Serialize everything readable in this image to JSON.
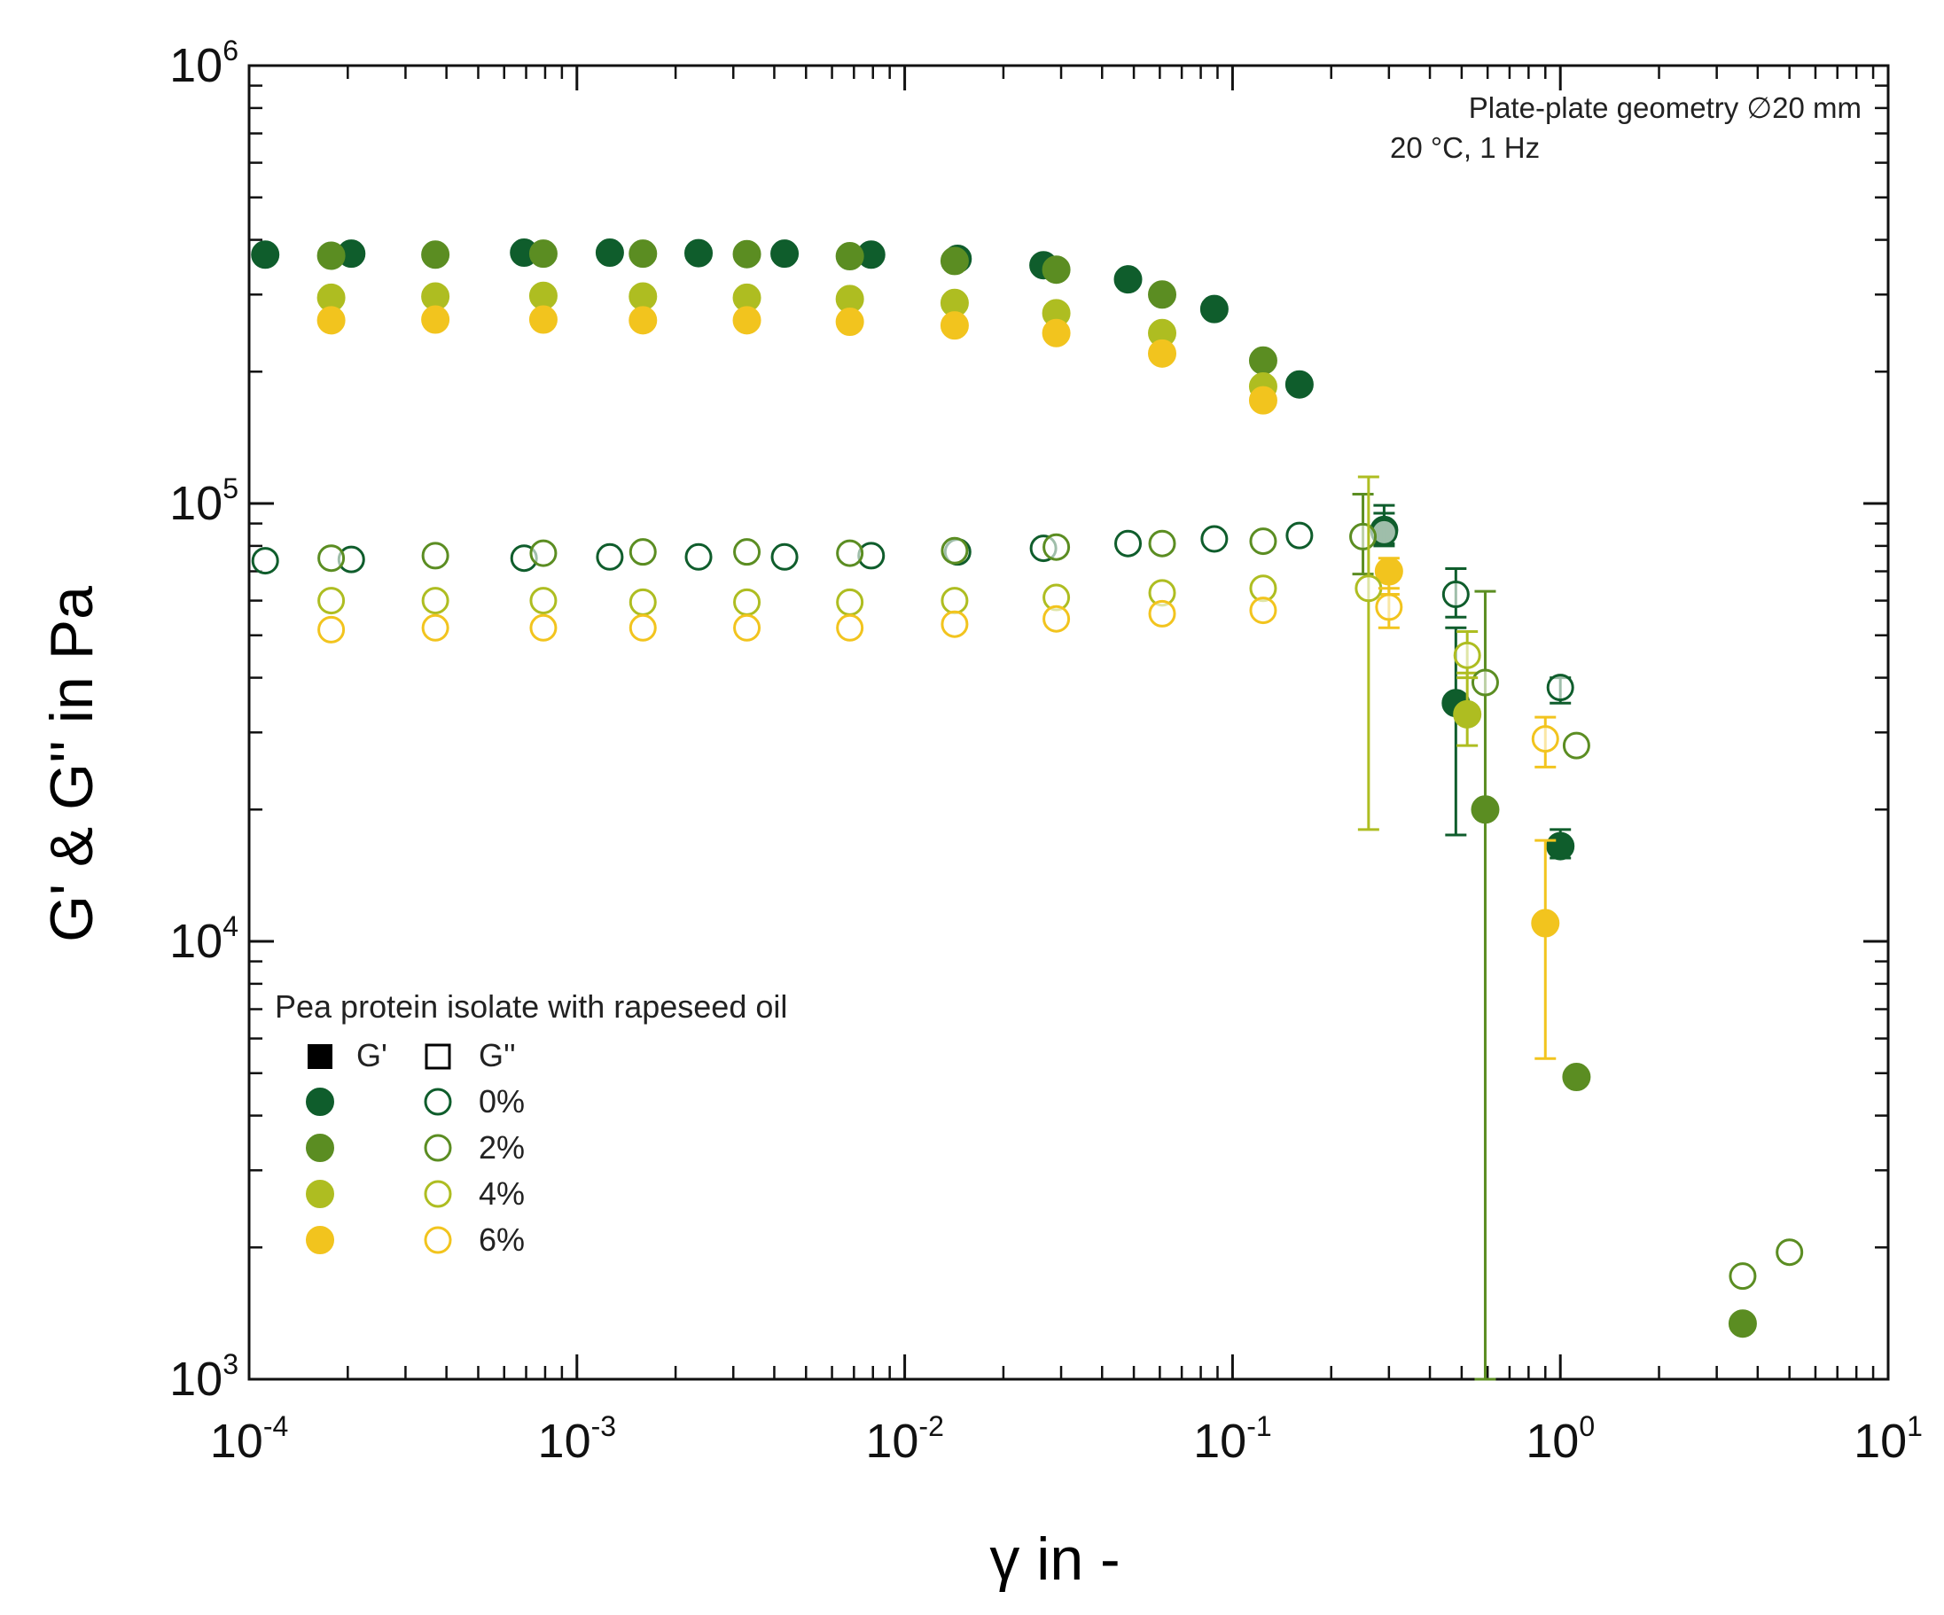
{
  "chart_data": {
    "type": "scatter",
    "title": "",
    "xlabel": "γ in -",
    "ylabel": "G' & G'' in Pa",
    "xscale": "log",
    "yscale": "log",
    "xlim": [
      0.0001,
      10
    ],
    "ylim": [
      1000,
      1000000
    ],
    "x_tick_labels": [
      {
        "base": "10",
        "exp": "-4",
        "value": 0.0001
      },
      {
        "base": "10",
        "exp": "-3",
        "value": 0.001
      },
      {
        "base": "10",
        "exp": "-2",
        "value": 0.01
      },
      {
        "base": "10",
        "exp": "-1",
        "value": 0.1
      },
      {
        "base": "10",
        "exp": "0",
        "value": 1
      },
      {
        "base": "10",
        "exp": "1",
        "value": 10
      }
    ],
    "y_tick_labels": [
      {
        "base": "10",
        "exp": "3",
        "value": 1000
      },
      {
        "base": "10",
        "exp": "4",
        "value": 10000
      },
      {
        "base": "10",
        "exp": "5",
        "value": 100000
      },
      {
        "base": "10",
        "exp": "6",
        "value": 1000000
      }
    ],
    "annotations": [
      "Plate-plate geometry ∅20 mm",
      "20 °C, 1 Hz"
    ],
    "legend": {
      "position": "bottom-left",
      "title": "Pea protein isolate with rapeseed oil",
      "marker_header": {
        "filled": "G'",
        "open": "G''"
      },
      "entries": [
        {
          "label": "0%",
          "color": "#0f5d2c"
        },
        {
          "label": "2%",
          "color": "#5b8d22"
        },
        {
          "label": "4%",
          "color": "#aebd21"
        },
        {
          "label": "6%",
          "color": "#f2c41e"
        }
      ]
    },
    "series": [
      {
        "name": "0% G'",
        "modulus": "G'",
        "color": "#0f5d2c",
        "filled": true,
        "points": [
          {
            "x": 0.000112,
            "y": 370000
          },
          {
            "x": 0.000205,
            "y": 372000
          },
          {
            "x": 0.00069,
            "y": 374000
          },
          {
            "x": 0.00126,
            "y": 374000
          },
          {
            "x": 0.00235,
            "y": 373000
          },
          {
            "x": 0.0043,
            "y": 372000
          },
          {
            "x": 0.0079,
            "y": 370000
          },
          {
            "x": 0.0145,
            "y": 362000
          },
          {
            "x": 0.0265,
            "y": 350000
          },
          {
            "x": 0.048,
            "y": 325000
          },
          {
            "x": 0.088,
            "y": 278000
          },
          {
            "x": 0.16,
            "y": 187000
          },
          {
            "x": 0.29,
            "y": 87000,
            "err": [
              80000,
              95000
            ]
          },
          {
            "x": 0.48,
            "y": 35000,
            "err": [
              17500,
              52000
            ]
          },
          {
            "x": 1.0,
            "y": 16500,
            "err": [
              15500,
              18000
            ]
          }
        ]
      },
      {
        "name": "2% G'",
        "modulus": "G'",
        "color": "#5b8d22",
        "filled": true,
        "points": [
          {
            "x": 0.000178,
            "y": 368000
          },
          {
            "x": 0.00037,
            "y": 370000
          },
          {
            "x": 0.00079,
            "y": 372000
          },
          {
            "x": 0.00159,
            "y": 372000
          },
          {
            "x": 0.0033,
            "y": 371000
          },
          {
            "x": 0.0068,
            "y": 367000
          },
          {
            "x": 0.0142,
            "y": 358000
          },
          {
            "x": 0.029,
            "y": 342000
          },
          {
            "x": 0.061,
            "y": 300000
          },
          {
            "x": 0.124,
            "y": 212000
          },
          {
            "x": 0.59,
            "y": 20000,
            "err": [
              1000,
              63000
            ]
          },
          {
            "x": 1.12,
            "y": 4900
          },
          {
            "x": 3.6,
            "y": 1340
          }
        ]
      },
      {
        "name": "4% G'",
        "modulus": "G'",
        "color": "#aebd21",
        "filled": true,
        "points": [
          {
            "x": 0.000178,
            "y": 295000
          },
          {
            "x": 0.00037,
            "y": 297000
          },
          {
            "x": 0.00079,
            "y": 298000
          },
          {
            "x": 0.00159,
            "y": 297000
          },
          {
            "x": 0.0033,
            "y": 295000
          },
          {
            "x": 0.0068,
            "y": 293000
          },
          {
            "x": 0.0142,
            "y": 287000
          },
          {
            "x": 0.029,
            "y": 272000
          },
          {
            "x": 0.061,
            "y": 245000
          },
          {
            "x": 0.124,
            "y": 185000
          },
          {
            "x": 0.52,
            "y": 33000,
            "err": [
              28000,
              41000
            ]
          }
        ]
      },
      {
        "name": "6% G'",
        "modulus": "G'",
        "color": "#f2c41e",
        "filled": true,
        "points": [
          {
            "x": 0.000178,
            "y": 262000
          },
          {
            "x": 0.00037,
            "y": 263000
          },
          {
            "x": 0.00079,
            "y": 263000
          },
          {
            "x": 0.00159,
            "y": 262000
          },
          {
            "x": 0.0033,
            "y": 262000
          },
          {
            "x": 0.0068,
            "y": 260000
          },
          {
            "x": 0.0142,
            "y": 255000
          },
          {
            "x": 0.029,
            "y": 245000
          },
          {
            "x": 0.061,
            "y": 220000
          },
          {
            "x": 0.124,
            "y": 172000
          },
          {
            "x": 0.3,
            "y": 70000,
            "err": [
              62000,
              75000
            ]
          },
          {
            "x": 0.9,
            "y": 11000,
            "err": [
              5400,
              17000
            ]
          }
        ]
      },
      {
        "name": "0% G''",
        "modulus": "G''",
        "color": "#0f5d2c",
        "filled": false,
        "points": [
          {
            "x": 0.000112,
            "y": 74000
          },
          {
            "x": 0.000205,
            "y": 74500
          },
          {
            "x": 0.00069,
            "y": 75000
          },
          {
            "x": 0.00126,
            "y": 75500
          },
          {
            "x": 0.00235,
            "y": 75500
          },
          {
            "x": 0.0043,
            "y": 75500
          },
          {
            "x": 0.0079,
            "y": 76000
          },
          {
            "x": 0.0145,
            "y": 77500
          },
          {
            "x": 0.0265,
            "y": 79000
          },
          {
            "x": 0.048,
            "y": 81000
          },
          {
            "x": 0.088,
            "y": 83000
          },
          {
            "x": 0.16,
            "y": 84500
          },
          {
            "x": 0.29,
            "y": 86000,
            "err": [
              81000,
              99000
            ]
          },
          {
            "x": 0.48,
            "y": 62000,
            "err": [
              55000,
              71000
            ]
          },
          {
            "x": 1.0,
            "y": 38000,
            "err": [
              35000,
              40000
            ]
          }
        ]
      },
      {
        "name": "2% G''",
        "modulus": "G''",
        "color": "#5b8d22",
        "filled": false,
        "points": [
          {
            "x": 0.000178,
            "y": 75000
          },
          {
            "x": 0.00037,
            "y": 76000
          },
          {
            "x": 0.00079,
            "y": 77000
          },
          {
            "x": 0.00159,
            "y": 77500
          },
          {
            "x": 0.0033,
            "y": 77500
          },
          {
            "x": 0.0068,
            "y": 77000
          },
          {
            "x": 0.0142,
            "y": 78000
          },
          {
            "x": 0.029,
            "y": 79500
          },
          {
            "x": 0.061,
            "y": 81000
          },
          {
            "x": 0.124,
            "y": 82000
          },
          {
            "x": 0.25,
            "y": 84000,
            "err": [
              69000,
              105000
            ]
          },
          {
            "x": 0.59,
            "y": 39000
          },
          {
            "x": 1.12,
            "y": 28000
          },
          {
            "x": 3.6,
            "y": 1720
          },
          {
            "x": 5.0,
            "y": 1950
          }
        ]
      },
      {
        "name": "4% G''",
        "modulus": "G''",
        "color": "#aebd21",
        "filled": false,
        "points": [
          {
            "x": 0.000178,
            "y": 60000
          },
          {
            "x": 0.00037,
            "y": 60000
          },
          {
            "x": 0.00079,
            "y": 60000
          },
          {
            "x": 0.00159,
            "y": 59500
          },
          {
            "x": 0.0033,
            "y": 59500
          },
          {
            "x": 0.0068,
            "y": 59500
          },
          {
            "x": 0.0142,
            "y": 60000
          },
          {
            "x": 0.029,
            "y": 61000
          },
          {
            "x": 0.061,
            "y": 62500
          },
          {
            "x": 0.124,
            "y": 64000
          },
          {
            "x": 0.26,
            "y": 64000,
            "err": [
              18000,
              115000
            ]
          },
          {
            "x": 0.52,
            "y": 45000,
            "err": [
              40000,
              51000
            ]
          }
        ]
      },
      {
        "name": "6% G''",
        "modulus": "G''",
        "color": "#f2c41e",
        "filled": false,
        "points": [
          {
            "x": 0.000178,
            "y": 51500
          },
          {
            "x": 0.00037,
            "y": 52000
          },
          {
            "x": 0.00079,
            "y": 52000
          },
          {
            "x": 0.00159,
            "y": 52000
          },
          {
            "x": 0.0033,
            "y": 52000
          },
          {
            "x": 0.0068,
            "y": 52000
          },
          {
            "x": 0.0142,
            "y": 53000
          },
          {
            "x": 0.029,
            "y": 54500
          },
          {
            "x": 0.061,
            "y": 56000
          },
          {
            "x": 0.124,
            "y": 57000
          },
          {
            "x": 0.3,
            "y": 58000,
            "err": [
              52000,
              64000
            ]
          },
          {
            "x": 0.9,
            "y": 29000,
            "err": [
              25000,
              32500
            ]
          }
        ]
      }
    ]
  }
}
